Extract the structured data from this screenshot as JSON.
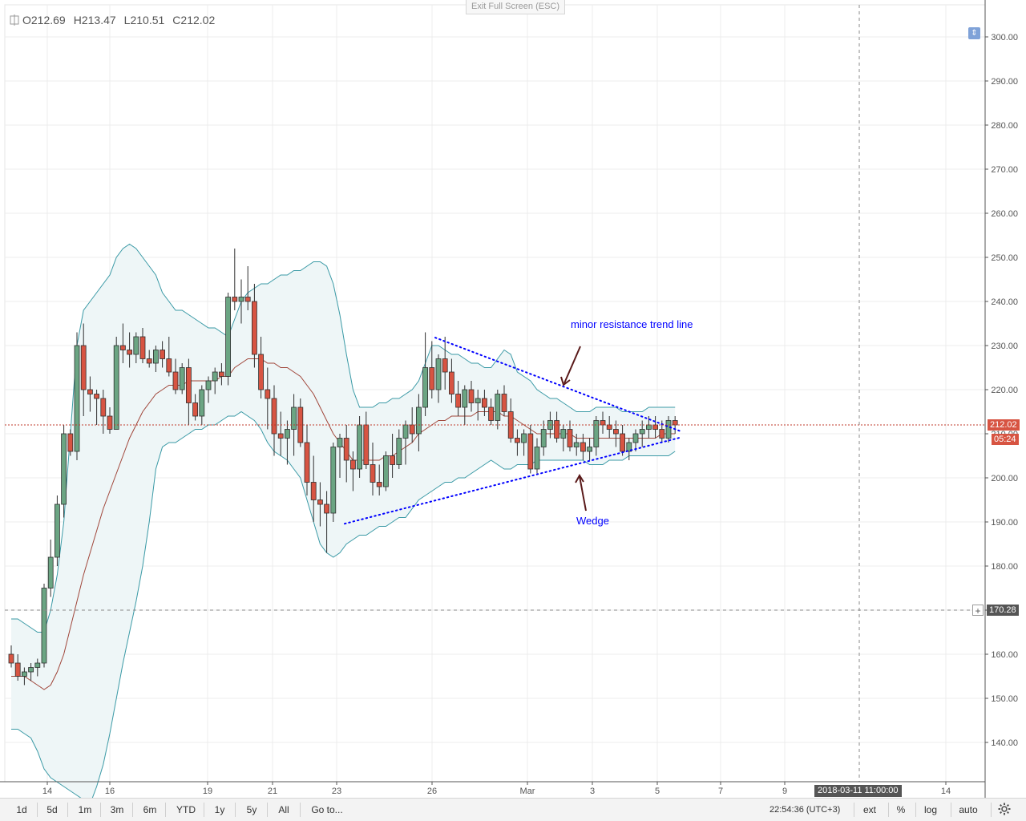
{
  "header": {
    "ohlc": {
      "o_label": "O",
      "o_value": "212.69",
      "h_label": "H",
      "h_value": "213.47",
      "l_label": "L",
      "l_value": "210.51",
      "c_label": "C",
      "c_value": "212.02"
    },
    "exit_fullscreen": "Exit Full Screen (ESC)"
  },
  "chart_data": {
    "type": "candlestick",
    "y_range": [
      130,
      304
    ],
    "y_ticks": [
      "300.00",
      "290.00",
      "280.00",
      "270.00",
      "260.00",
      "250.00",
      "240.00",
      "230.00",
      "220.00",
      "210.00",
      "200.00",
      "190.00",
      "180.00",
      "170.00",
      "160.00",
      "150.00",
      "140.00"
    ],
    "x_ticks": [
      "14",
      "16",
      "19",
      "21",
      "23",
      "26",
      "Mar",
      "3",
      "5",
      "7",
      "9",
      "14"
    ],
    "last_price_label": "212.02",
    "countdown_label": "05:24",
    "crosshair_price_label": "170.28",
    "crosshair_date_label": "2018-03-11 11:00:00",
    "candles": [
      [
        160,
        162,
        157,
        158
      ],
      [
        158,
        160,
        154,
        155
      ],
      [
        155,
        157,
        153,
        156
      ],
      [
        156,
        158,
        154,
        157
      ],
      [
        157,
        159,
        155,
        158
      ],
      [
        158,
        176,
        157,
        175
      ],
      [
        175,
        186,
        173,
        182
      ],
      [
        182,
        196,
        180,
        194
      ],
      [
        194,
        212,
        191,
        210
      ],
      [
        210,
        211,
        205,
        206
      ],
      [
        206,
        233,
        204,
        230
      ],
      [
        230,
        235,
        214,
        220
      ],
      [
        220,
        223,
        215,
        219
      ],
      [
        219,
        220,
        212,
        218
      ],
      [
        218,
        220,
        210,
        214
      ],
      [
        214,
        216,
        210,
        211
      ],
      [
        211,
        232,
        211,
        230
      ],
      [
        230,
        235,
        226,
        229
      ],
      [
        229,
        233,
        225,
        228
      ],
      [
        228,
        233,
        226,
        232
      ],
      [
        232,
        234,
        226,
        227
      ],
      [
        227,
        229,
        225,
        226
      ],
      [
        226,
        230,
        224,
        229
      ],
      [
        229,
        231,
        225,
        227
      ],
      [
        227,
        232,
        223,
        224
      ],
      [
        224,
        227,
        219,
        220
      ],
      [
        220,
        226,
        219,
        225
      ],
      [
        225,
        227,
        212,
        217
      ],
      [
        217,
        219,
        213,
        214
      ],
      [
        214,
        221,
        212,
        220
      ],
      [
        220,
        223,
        217,
        222
      ],
      [
        222,
        225,
        219,
        224
      ],
      [
        224,
        226,
        221,
        223
      ],
      [
        223,
        242,
        221,
        241
      ],
      [
        241,
        252,
        238,
        240
      ],
      [
        240,
        245,
        235,
        241
      ],
      [
        241,
        248,
        238,
        240
      ],
      [
        240,
        244,
        225,
        228
      ],
      [
        228,
        232,
        218,
        220
      ],
      [
        220,
        225,
        211,
        218
      ],
      [
        218,
        221,
        205,
        210
      ],
      [
        210,
        215,
        205,
        209
      ],
      [
        209,
        213,
        203,
        211
      ],
      [
        211,
        219,
        205,
        216
      ],
      [
        216,
        218,
        207,
        208
      ],
      [
        208,
        212,
        196,
        199
      ],
      [
        199,
        205,
        190,
        195
      ],
      [
        195,
        199,
        189,
        194
      ],
      [
        194,
        197,
        183,
        192
      ],
      [
        192,
        208,
        190,
        207
      ],
      [
        207,
        210,
        200,
        209
      ],
      [
        209,
        212,
        199,
        204
      ],
      [
        204,
        206,
        197,
        202
      ],
      [
        202,
        214,
        200,
        212
      ],
      [
        212,
        215,
        202,
        203
      ],
      [
        203,
        208,
        196,
        199
      ],
      [
        199,
        203,
        196,
        198
      ],
      [
        198,
        206,
        197,
        205
      ],
      [
        205,
        210,
        200,
        203
      ],
      [
        203,
        211,
        202,
        209
      ],
      [
        209,
        213,
        203,
        212
      ],
      [
        212,
        216,
        208,
        210
      ],
      [
        210,
        219,
        206,
        216
      ],
      [
        216,
        233,
        214,
        225
      ],
      [
        225,
        231,
        218,
        220
      ],
      [
        220,
        228,
        217,
        227
      ],
      [
        227,
        232,
        220,
        224
      ],
      [
        224,
        227,
        217,
        219
      ],
      [
        219,
        222,
        214,
        216
      ],
      [
        216,
        221,
        212,
        220
      ],
      [
        220,
        222,
        215,
        217
      ],
      [
        217,
        220,
        213,
        218
      ],
      [
        218,
        220,
        214,
        216
      ],
      [
        216,
        218,
        212,
        213
      ],
      [
        213,
        220,
        211,
        219
      ],
      [
        219,
        221,
        214,
        215
      ],
      [
        215,
        218,
        208,
        209
      ],
      [
        209,
        211,
        205,
        208
      ],
      [
        208,
        211,
        205,
        210
      ],
      [
        210,
        212,
        201,
        202
      ],
      [
        202,
        209,
        201,
        207
      ],
      [
        207,
        213,
        205,
        211
      ],
      [
        211,
        215,
        209,
        213
      ],
      [
        213,
        215,
        208,
        209
      ],
      [
        209,
        212,
        206,
        211
      ],
      [
        211,
        213,
        206,
        207
      ],
      [
        207,
        210,
        205,
        208
      ],
      [
        208,
        210,
        204,
        206
      ],
      [
        206,
        209,
        204,
        207
      ],
      [
        207,
        214,
        205,
        213
      ],
      [
        213,
        215,
        210,
        212
      ],
      [
        212,
        214,
        209,
        211
      ],
      [
        211,
        213,
        207,
        210
      ],
      [
        210,
        212,
        205,
        206
      ],
      [
        206,
        209,
        204,
        208
      ],
      [
        208,
        211,
        206,
        210
      ],
      [
        210,
        213,
        207,
        211
      ],
      [
        211,
        214,
        209,
        212
      ],
      [
        212,
        214,
        209,
        211
      ],
      [
        211,
        213,
        208,
        209
      ],
      [
        209,
        214,
        208,
        213
      ],
      [
        213,
        214,
        210,
        212
      ]
    ],
    "bb_upper": [
      168,
      168,
      167,
      166,
      165,
      165,
      170,
      178,
      190,
      210,
      230,
      238,
      240,
      242,
      244,
      246,
      250,
      252,
      253,
      252,
      250,
      248,
      246,
      242,
      240,
      238,
      238,
      237,
      236,
      235,
      234,
      234,
      233,
      232,
      236,
      240,
      242,
      243,
      244,
      244,
      245,
      246,
      246,
      247,
      247,
      248,
      249,
      249,
      248,
      244,
      237,
      228,
      220,
      216,
      216,
      216,
      217,
      217,
      218,
      218,
      219,
      220,
      222,
      226,
      230,
      230,
      229,
      228,
      228,
      227,
      226,
      226,
      225,
      225,
      227,
      229,
      228,
      224,
      223,
      222,
      220,
      219,
      218,
      218,
      217,
      216,
      215,
      215,
      215,
      216,
      216,
      216,
      216,
      215,
      215,
      215,
      215,
      216,
      216,
      216,
      216,
      216
    ],
    "bb_lower": [
      143,
      143,
      142,
      141,
      138,
      134,
      132,
      131,
      130,
      129,
      128,
      127,
      126,
      130,
      135,
      142,
      150,
      158,
      165,
      172,
      180,
      190,
      202,
      207,
      208,
      208,
      209,
      210,
      211,
      211,
      212,
      212,
      213,
      214,
      214,
      215,
      214,
      213,
      211,
      208,
      206,
      205,
      204,
      202,
      200,
      195,
      190,
      185,
      183,
      182,
      183,
      185,
      186,
      187,
      187,
      188,
      189,
      189,
      190,
      191,
      191,
      193,
      195,
      196,
      197,
      198,
      199,
      199,
      200,
      200,
      201,
      202,
      203,
      204,
      203,
      202,
      202,
      203,
      203,
      203,
      204,
      204,
      204,
      204,
      204,
      204,
      204,
      204,
      203,
      203,
      203,
      204,
      204,
      204,
      205,
      205,
      205,
      205,
      205,
      205,
      205,
      206
    ],
    "bb_middle": [
      155,
      155,
      155,
      154,
      153,
      152,
      153,
      156,
      160,
      166,
      172,
      178,
      183,
      188,
      193,
      197,
      201,
      205,
      209,
      212,
      215,
      217,
      219,
      220,
      221,
      221,
      221,
      222,
      222,
      222,
      222,
      222,
      223,
      223,
      225,
      226,
      227,
      227,
      227,
      226,
      226,
      225,
      225,
      224,
      223,
      221,
      219,
      216,
      213,
      210,
      208,
      206,
      204,
      204,
      204,
      204,
      204,
      205,
      205,
      206,
      207,
      208,
      210,
      211,
      212,
      213,
      213,
      214,
      214,
      214,
      214,
      215,
      215,
      215,
      215,
      214,
      214,
      213,
      212,
      211,
      210,
      210,
      210,
      210,
      210,
      210,
      209,
      209,
      209,
      209,
      209,
      209,
      209,
      209,
      209,
      209,
      209,
      209,
      209,
      210,
      210,
      210
    ],
    "annotations": {
      "resistance_label": "minor resistance trend line",
      "wedge_label": "Wedge"
    }
  },
  "toolbar": {
    "ranges": [
      "1d",
      "5d",
      "1m",
      "3m",
      "6m",
      "YTD",
      "1y",
      "5y",
      "All"
    ],
    "goto": "Go to...",
    "clock": "22:54:36 (UTC+3)",
    "ext": "ext",
    "percent": "%",
    "log": "log",
    "auto": "auto"
  },
  "colors": {
    "up": "#6ba583",
    "down": "#d75442",
    "candle_border": "#2f2f2f",
    "bb_band": "#3b9aa6",
    "bb_fill": "#eef6f7",
    "bb_middle": "#a0463a",
    "trend": "#0000ff",
    "last_price": "#c0392b",
    "countdown_bg": "#d75442"
  }
}
